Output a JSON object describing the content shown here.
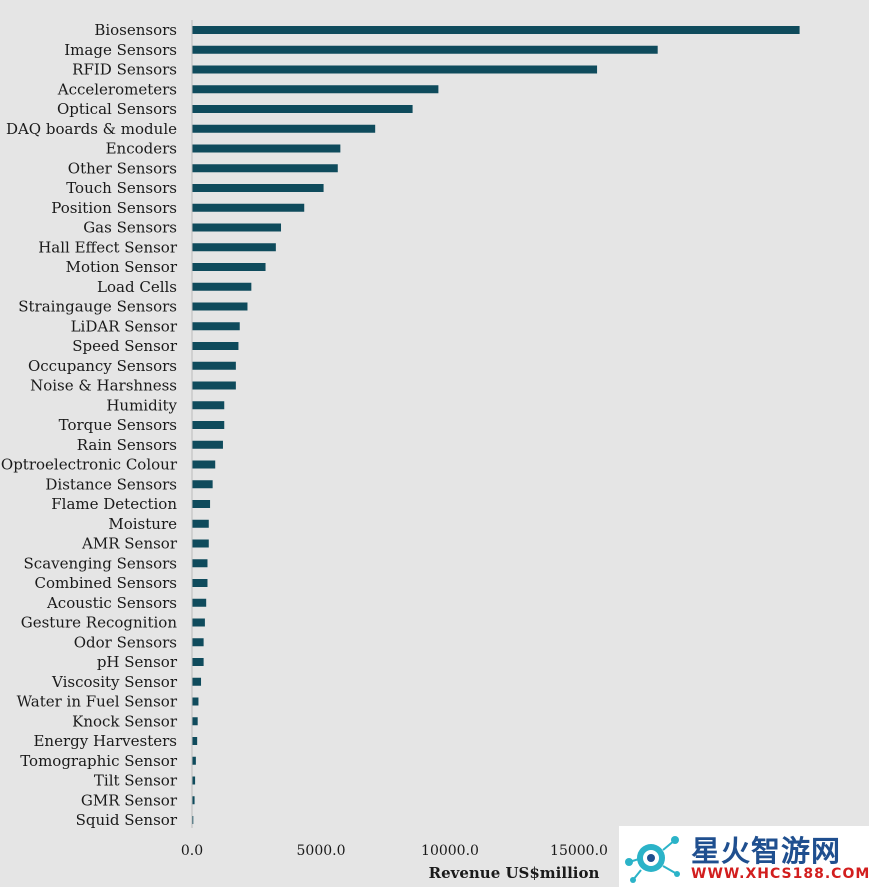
{
  "chart_data": {
    "type": "bar",
    "orientation": "horizontal",
    "categories": [
      "Biosensors",
      "Image Sensors",
      "RFID Sensors",
      "Accelerometers",
      "Optical Sensors",
      "DAQ boards & module",
      "Encoders",
      "Other Sensors",
      "Touch Sensors",
      "Position Sensors",
      "Gas Sensors",
      "Hall Effect Sensor",
      "Motion Sensor",
      "Load Cells",
      "Straingauge Sensors",
      "LiDAR Sensor",
      "Speed Sensor",
      "Occupancy Sensors",
      "Noise & Harshness",
      "Humidity",
      "Torque Sensors",
      "Rain Sensors",
      "Optroelectronic Colour",
      "Distance Sensors",
      "Flame Detection",
      "Moisture",
      "AMR Sensor",
      "Scavenging Sensors",
      "Combined Sensors",
      "Acoustic Sensors",
      "Gesture Recognition",
      "Odor Sensors",
      "pH Sensor",
      "Viscosity Sensor",
      "Water in Fuel Sensor",
      "Knock Sensor",
      "Energy Harvesters",
      "Tomographic Sensor",
      "Tilt Sensor",
      "GMR Sensor",
      "Squid Sensor"
    ],
    "values": [
      23550,
      18050,
      15700,
      9550,
      8550,
      7100,
      5750,
      5650,
      5100,
      4350,
      3450,
      3250,
      2850,
      2300,
      2150,
      1850,
      1800,
      1700,
      1700,
      1250,
      1250,
      1200,
      900,
      800,
      700,
      650,
      650,
      600,
      600,
      550,
      500,
      450,
      450,
      350,
      250,
      220,
      200,
      150,
      120,
      100,
      50
    ],
    "xlabel": "Revenue US$million",
    "ylabel": "",
    "title": "",
    "xlim": [
      0,
      25000
    ],
    "xticks": [
      "0.0",
      "5000.0",
      "10000.0",
      "15000.0"
    ],
    "grid": false,
    "bar_color": "#0f4b5c"
  },
  "watermark": {
    "text": "星火智游网",
    "url": "WWW.XHCS188.COM"
  }
}
